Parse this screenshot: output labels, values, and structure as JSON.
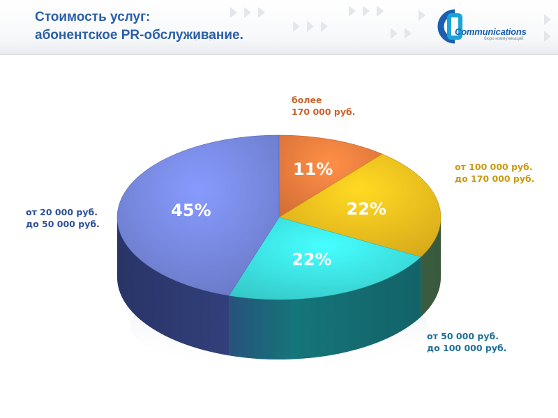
{
  "header": {
    "title_line1": "Стоимость услуг:",
    "title_line2": "абонентское PR-обслуживание."
  },
  "logo": {
    "text": "Communications",
    "subtitle": "бюро коммуникаций",
    "icon": "cb-logo-icon"
  },
  "colors": {
    "title": "#2a5fa8",
    "slice_orange": "#e2753a",
    "slice_gold": "#e6b31c",
    "slice_cyan": "#39d6d6",
    "slice_blue": "#6f7fd0"
  },
  "chart_data": {
    "type": "pie",
    "slices": [
      {
        "label_line1": "более",
        "label_line2": "170 000 руб.",
        "value": 11,
        "value_label": "11%",
        "color": "#e2753a",
        "text_color": "#c8622c"
      },
      {
        "label_line1": "от 100 000 руб.",
        "label_line2": "до 170 000 руб.",
        "value": 22,
        "value_label": "22%",
        "color": "#e6b31c",
        "text_color": "#c89a12"
      },
      {
        "label_line1": "от 50 000 руб.",
        "label_line2": "до 100 000 руб.",
        "value": 22,
        "value_label": "22%",
        "color": "#39d6d6",
        "text_color": "#1f6f99"
      },
      {
        "label_line1": "от 20 000 руб.",
        "label_line2": "до 50 000 руб.",
        "value": 45,
        "value_label": "45%",
        "color": "#6f7fd0",
        "text_color": "#2e4f9a"
      }
    ]
  }
}
